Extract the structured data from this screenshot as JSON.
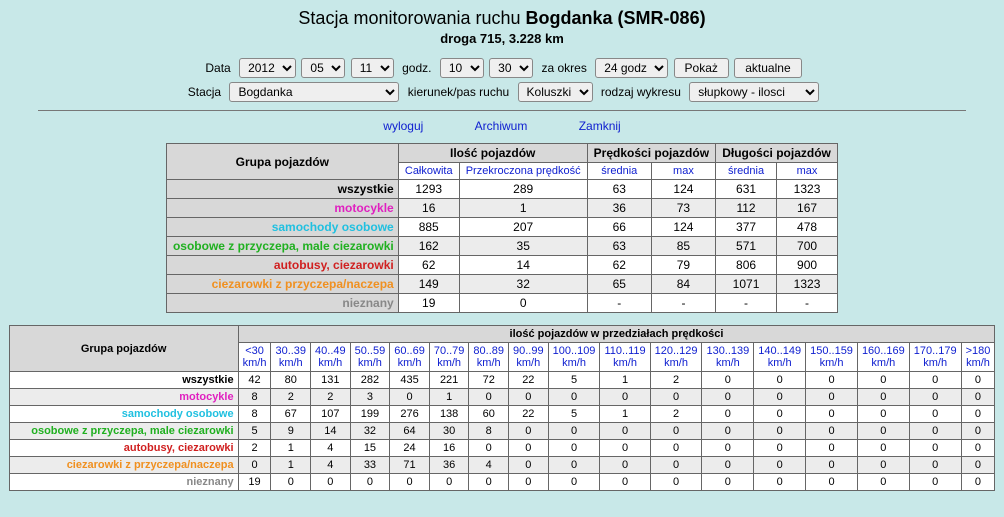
{
  "header": {
    "title_prefix": "Stacja monitorowania ruchu ",
    "title_bold": "Bogdanka (SMR-086)",
    "subtitle": "droga 715, 3.228 km"
  },
  "controls": {
    "data_label": "Data",
    "year": "2012",
    "month": "05",
    "day": "11",
    "godz_label": "godz.",
    "hour": "10",
    "minute": "30",
    "za_okres_label": "za okres",
    "period": "24 godz",
    "pokaz": "Pokaż",
    "aktualne": "aktualne",
    "stacja_label": "Stacja",
    "stacja": "Bogdanka",
    "kierunek_label": "kierunek/pas ruchu",
    "kierunek": "Koluszki",
    "rodzaj_label": "rodzaj wykresu",
    "rodzaj": "słupkowy - ilosci"
  },
  "links": {
    "wyloguj": "wyloguj",
    "archiwum": "Archiwum",
    "zamknij": "Zamknij"
  },
  "groups": [
    {
      "label": "wszystkie",
      "cls": "c-wszystkie"
    },
    {
      "label": "motocykle",
      "cls": "c-motocykle"
    },
    {
      "label": "samochody osobowe",
      "cls": "c-osobowe"
    },
    {
      "label": "osobowe z przyczepa, male ciezarowki",
      "cls": "c-przyczepa"
    },
    {
      "label": "autobusy, ciezarowki",
      "cls": "c-autobusy"
    },
    {
      "label": "ciezarowki z przyczepa/naczepa",
      "cls": "c-ciezar"
    },
    {
      "label": "nieznany",
      "cls": "c-nieznany"
    }
  ],
  "table1": {
    "h_grupa": "Grupa pojazdów",
    "h_ilosc": "Ilość pojazdów",
    "h_pred": "Prędkości pojazdów",
    "h_dlug": "Długości pojazdów",
    "h_calk": "Całkowita",
    "h_przek": "Przekroczona prędkość",
    "h_srednia": "średnia",
    "h_max": "max",
    "rows": [
      [
        "1293",
        "289",
        "63",
        "124",
        "631",
        "1323"
      ],
      [
        "16",
        "1",
        "36",
        "73",
        "112",
        "167"
      ],
      [
        "885",
        "207",
        "66",
        "124",
        "377",
        "478"
      ],
      [
        "162",
        "35",
        "63",
        "85",
        "571",
        "700"
      ],
      [
        "62",
        "14",
        "62",
        "79",
        "806",
        "900"
      ],
      [
        "149",
        "32",
        "65",
        "84",
        "1071",
        "1323"
      ],
      [
        "19",
        "0",
        "-",
        "-",
        "-",
        "-"
      ]
    ]
  },
  "table2": {
    "h_grupa": "Grupa pojazdów",
    "h_title": "ilość pojazdów w przedziałach prędkości",
    "cols": [
      "<30 km/h",
      "30..39 km/h",
      "40..49 km/h",
      "50..59 km/h",
      "60..69 km/h",
      "70..79 km/h",
      "80..89 km/h",
      "90..99 km/h",
      "100..109 km/h",
      "110..119 km/h",
      "120..129 km/h",
      "130..139 km/h",
      "140..149 km/h",
      "150..159 km/h",
      "160..169 km/h",
      "170..179 km/h",
      ">180 km/h"
    ],
    "rows": [
      [
        "42",
        "80",
        "131",
        "282",
        "435",
        "221",
        "72",
        "22",
        "5",
        "1",
        "2",
        "0",
        "0",
        "0",
        "0",
        "0",
        "0"
      ],
      [
        "8",
        "2",
        "2",
        "3",
        "0",
        "1",
        "0",
        "0",
        "0",
        "0",
        "0",
        "0",
        "0",
        "0",
        "0",
        "0",
        "0"
      ],
      [
        "8",
        "67",
        "107",
        "199",
        "276",
        "138",
        "60",
        "22",
        "5",
        "1",
        "2",
        "0",
        "0",
        "0",
        "0",
        "0",
        "0"
      ],
      [
        "5",
        "9",
        "14",
        "32",
        "64",
        "30",
        "8",
        "0",
        "0",
        "0",
        "0",
        "0",
        "0",
        "0",
        "0",
        "0",
        "0"
      ],
      [
        "2",
        "1",
        "4",
        "15",
        "24",
        "16",
        "0",
        "0",
        "0",
        "0",
        "0",
        "0",
        "0",
        "0",
        "0",
        "0",
        "0"
      ],
      [
        "0",
        "1",
        "4",
        "33",
        "71",
        "36",
        "4",
        "0",
        "0",
        "0",
        "0",
        "0",
        "0",
        "0",
        "0",
        "0",
        "0"
      ],
      [
        "19",
        "0",
        "0",
        "0",
        "0",
        "0",
        "0",
        "0",
        "0",
        "0",
        "0",
        "0",
        "0",
        "0",
        "0",
        "0",
        "0"
      ]
    ]
  }
}
